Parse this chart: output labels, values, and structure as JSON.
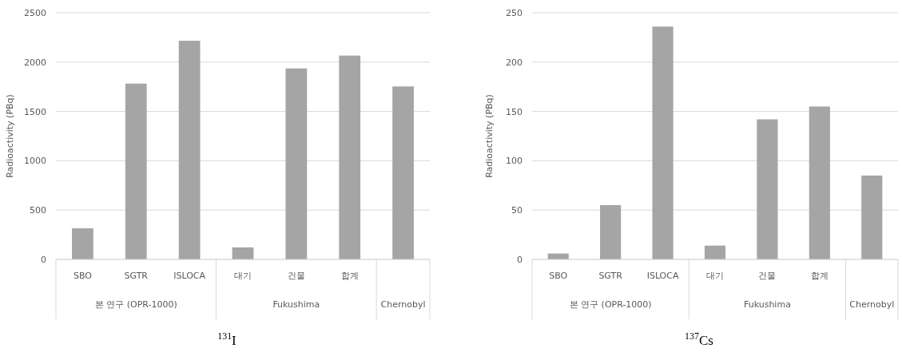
{
  "chart_data": [
    {
      "type": "bar",
      "categories": [
        "SBO",
        "SGTR",
        "ISLOCA",
        "대기",
        "건물",
        "합계",
        null
      ],
      "values": [
        315,
        1782,
        2216,
        122,
        1936,
        2066,
        1753
      ],
      "color": "#a5a5a5",
      "ylabel": "Radioactivity (PBq)",
      "ylim": [
        0,
        2500
      ],
      "yticks": [
        0,
        500,
        1000,
        1500,
        2000,
        2500
      ],
      "grid": "y",
      "annotations": [
        "본 연구 (OPR-1000)",
        "Fukushima",
        "Chernobyl",
        "$^{131}$I"
      ]
    },
    {
      "type": "bar",
      "categories": [
        "SBO",
        "SGTR",
        "ISLOCA",
        "대기",
        "건물",
        "합계",
        null
      ],
      "values": [
        6,
        55,
        236,
        14,
        142,
        155,
        85
      ],
      "color": "#a5a5a5",
      "ylabel": "Radioactivity (PBq)",
      "ylim": [
        0,
        250
      ],
      "yticks": [
        0,
        50,
        100,
        150,
        200,
        250
      ],
      "grid": "y",
      "annotations": [
        "본 연구 (OPR-1000)",
        "Fukushima",
        "Chernobyl",
        "$^{137}$Cs"
      ]
    }
  ]
}
